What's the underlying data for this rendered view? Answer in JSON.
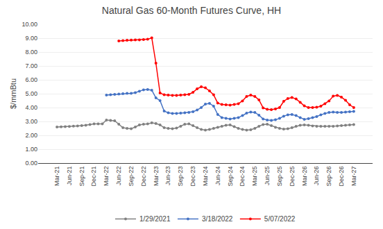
{
  "chart_data": {
    "type": "line",
    "title": "Natural Gas 60-Month Futures Curve, HH",
    "y_label": "$/mmBtu",
    "categories": [
      "Mar-21",
      null,
      null,
      "Jun-21",
      null,
      null,
      "Sep-21",
      null,
      null,
      "Dec-21",
      null,
      null,
      "Mar-22",
      null,
      null,
      "Jun-22",
      null,
      null,
      "Sep-22",
      null,
      null,
      "Dec-22",
      null,
      null,
      "Mar-23",
      null,
      null,
      "Jun-23",
      null,
      null,
      "Sep-23",
      null,
      null,
      "Dec-23",
      null,
      null,
      "Mar-24",
      null,
      null,
      "Jun-24",
      null,
      null,
      "Sep-24",
      null,
      null,
      "Dec-24",
      null,
      null,
      "Mar-25",
      null,
      null,
      "Jun-25",
      null,
      null,
      "Sep-25",
      null,
      null,
      "Dec-25",
      null,
      null,
      "Mar-26",
      null,
      null,
      "Jun-26",
      null,
      null,
      "Sep-26",
      null,
      null,
      "Dec-26",
      null,
      null,
      "Mar-27"
    ],
    "ylim": [
      0.0,
      10.0
    ],
    "yticks": [
      {
        "value": 0.0,
        "label": "0.00"
      },
      {
        "value": 1.0,
        "label": "1.00"
      },
      {
        "value": 2.0,
        "label": "2.00"
      },
      {
        "value": 3.0,
        "label": "3.00"
      },
      {
        "value": 4.0,
        "label": "4.00"
      },
      {
        "value": 5.0,
        "label": "5.00"
      },
      {
        "value": 6.0,
        "label": "6.00"
      },
      {
        "value": 7.0,
        "label": "7.00"
      },
      {
        "value": 8.0,
        "label": "8.00"
      },
      {
        "value": 9.0,
        "label": "9.00"
      },
      {
        "value": 10.0,
        "label": "10.00"
      }
    ],
    "grid": true,
    "legend": "bottom",
    "marker": "circle",
    "series": [
      {
        "name": "1/29/2021",
        "color": "#808080",
        "values": [
          2.6,
          2.61,
          2.62,
          2.64,
          2.66,
          2.68,
          2.7,
          2.72,
          2.77,
          2.82,
          2.83,
          2.82,
          3.1,
          3.08,
          3.05,
          2.8,
          2.55,
          2.5,
          2.48,
          2.6,
          2.75,
          2.8,
          2.82,
          2.9,
          2.85,
          2.75,
          2.55,
          2.5,
          2.48,
          2.52,
          2.65,
          2.8,
          2.82,
          2.7,
          2.55,
          2.42,
          2.38,
          2.42,
          2.5,
          2.58,
          2.65,
          2.72,
          2.75,
          2.62,
          2.5,
          2.42,
          2.38,
          2.4,
          2.5,
          2.65,
          2.78,
          2.8,
          2.7,
          2.58,
          2.5,
          2.45,
          2.48,
          2.55,
          2.65,
          2.72,
          2.75,
          2.72,
          2.68,
          2.65,
          2.65,
          2.65,
          2.65,
          2.65,
          2.68,
          2.7,
          2.72,
          2.75,
          2.78
        ]
      },
      {
        "name": "3/18/2022",
        "color": "#4472C4",
        "values": [
          null,
          null,
          null,
          null,
          null,
          null,
          null,
          null,
          null,
          null,
          null,
          null,
          4.9,
          4.92,
          4.95,
          4.98,
          5.0,
          5.02,
          5.02,
          5.08,
          5.18,
          5.28,
          5.3,
          5.25,
          4.7,
          4.5,
          3.75,
          3.62,
          3.58,
          3.58,
          3.6,
          3.62,
          3.65,
          3.7,
          3.82,
          4.0,
          4.25,
          4.3,
          4.1,
          3.5,
          3.28,
          3.22,
          3.18,
          3.22,
          3.28,
          3.42,
          3.6,
          3.68,
          3.65,
          3.45,
          3.18,
          3.1,
          3.08,
          3.12,
          3.22,
          3.38,
          3.48,
          3.5,
          3.42,
          3.28,
          3.15,
          3.2,
          3.28,
          3.35,
          3.48,
          3.58,
          3.65,
          3.68,
          3.65,
          3.65,
          3.68,
          3.7,
          3.72
        ]
      },
      {
        "name": "5/07/2022",
        "color": "#FF0000",
        "values": [
          null,
          null,
          null,
          null,
          null,
          null,
          null,
          null,
          null,
          null,
          null,
          null,
          null,
          null,
          null,
          8.8,
          8.82,
          8.85,
          8.86,
          8.87,
          8.88,
          8.9,
          8.92,
          9.02,
          7.2,
          5.05,
          4.92,
          4.9,
          4.88,
          4.88,
          4.9,
          4.92,
          4.95,
          5.1,
          5.35,
          5.5,
          5.42,
          5.2,
          4.92,
          4.32,
          4.22,
          4.2,
          4.18,
          4.22,
          4.28,
          4.48,
          4.8,
          4.9,
          4.8,
          4.55,
          3.98,
          3.88,
          3.85,
          3.9,
          4.0,
          4.45,
          4.65,
          4.72,
          4.62,
          4.38,
          4.12,
          4.0,
          4.0,
          4.02,
          4.1,
          4.28,
          4.48,
          4.82,
          4.88,
          4.75,
          4.52,
          4.2,
          4.0
        ]
      }
    ]
  }
}
